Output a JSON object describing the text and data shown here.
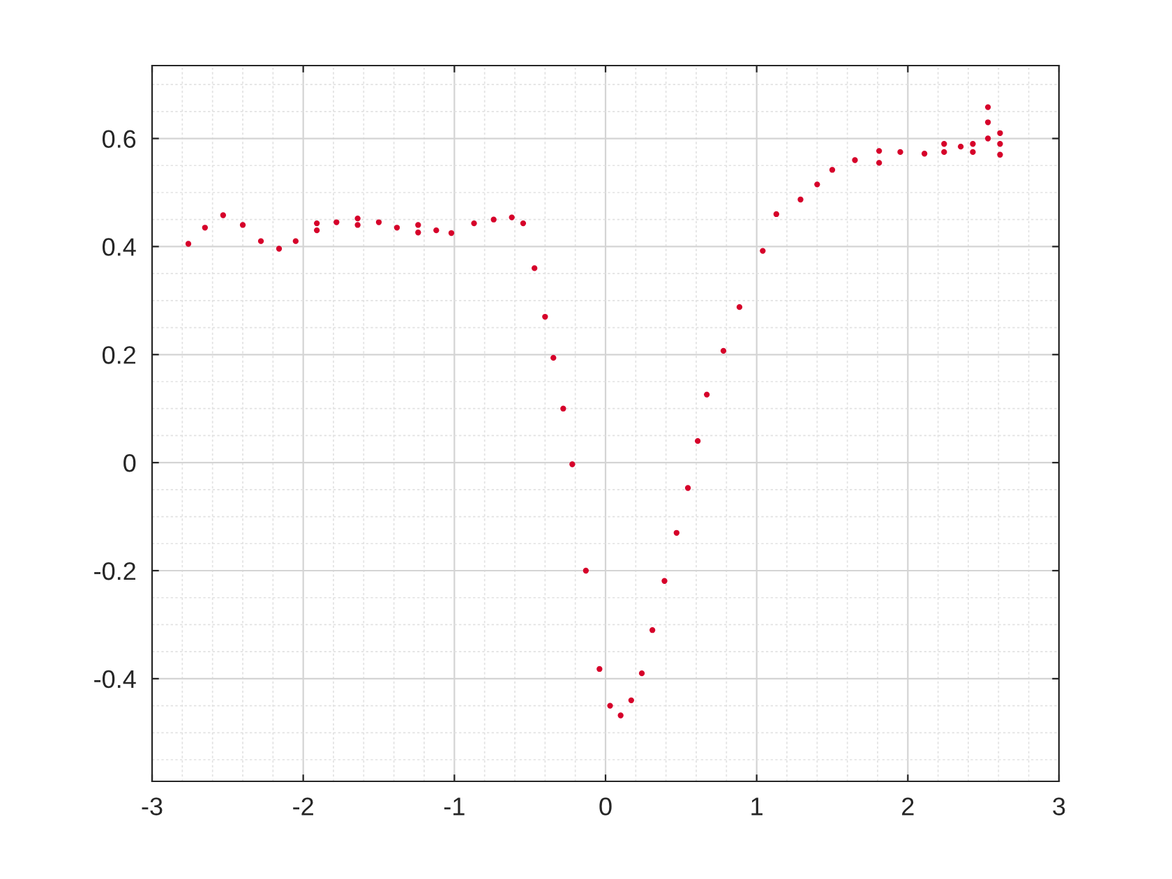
{
  "chart_data": {
    "type": "scatter",
    "marker": "circle",
    "grid": true,
    "xlim": [
      -3,
      3
    ],
    "xticks": [
      -3,
      -2,
      -1,
      0,
      1,
      2,
      3
    ],
    "ylim": [
      -0.59,
      0.735
    ],
    "yticks": [
      {
        "value": -0.4,
        "label": "-0.4"
      },
      {
        "value": -0.2,
        "label": "-0.2"
      },
      0,
      0.2,
      0.4,
      0.6
    ],
    "series": [
      {
        "color": "#d6002a",
        "x": [
          -2.76,
          -2.65,
          -2.53,
          -2.4,
          -2.28,
          -2.16,
          -2.05,
          -1.91,
          -1.91,
          -1.78,
          -1.64,
          -1.64,
          -1.5,
          -1.38,
          -1.24,
          -1.24,
          -1.12,
          -1.02,
          -0.87,
          -0.74,
          -0.62,
          -0.545,
          -0.47,
          -0.4,
          -0.345,
          -0.28,
          -0.22,
          -0.13,
          -0.04,
          0.03,
          0.1,
          0.17,
          0.24,
          0.31,
          0.39,
          0.47,
          0.545,
          0.61,
          0.67,
          0.78,
          0.886,
          1.04,
          1.13,
          1.29,
          1.4,
          1.5,
          1.65,
          1.81,
          1.81,
          1.95,
          2.11,
          2.24,
          2.24,
          2.35,
          2.43,
          2.43,
          2.53,
          2.53,
          2.53,
          2.61,
          2.61,
          2.61
        ],
        "values": [
          0.405,
          0.435,
          0.458,
          0.44,
          0.41,
          0.396,
          0.41,
          0.443,
          0.43,
          0.445,
          0.452,
          0.44,
          0.445,
          0.435,
          0.426,
          0.44,
          0.43,
          0.425,
          0.443,
          0.45,
          0.454,
          0.443,
          0.36,
          0.27,
          0.194,
          0.1,
          -0.003,
          -0.2,
          -0.382,
          -0.45,
          -0.468,
          -0.44,
          -0.39,
          -0.31,
          -0.219,
          -0.13,
          -0.047,
          0.04,
          0.126,
          0.207,
          0.288,
          0.392,
          0.46,
          0.487,
          0.515,
          0.542,
          0.56,
          0.577,
          0.555,
          0.575,
          0.572,
          0.59,
          0.575,
          0.585,
          0.59,
          0.575,
          0.658,
          0.63,
          0.6,
          0.61,
          0.59,
          0.57
        ]
      }
    ]
  }
}
